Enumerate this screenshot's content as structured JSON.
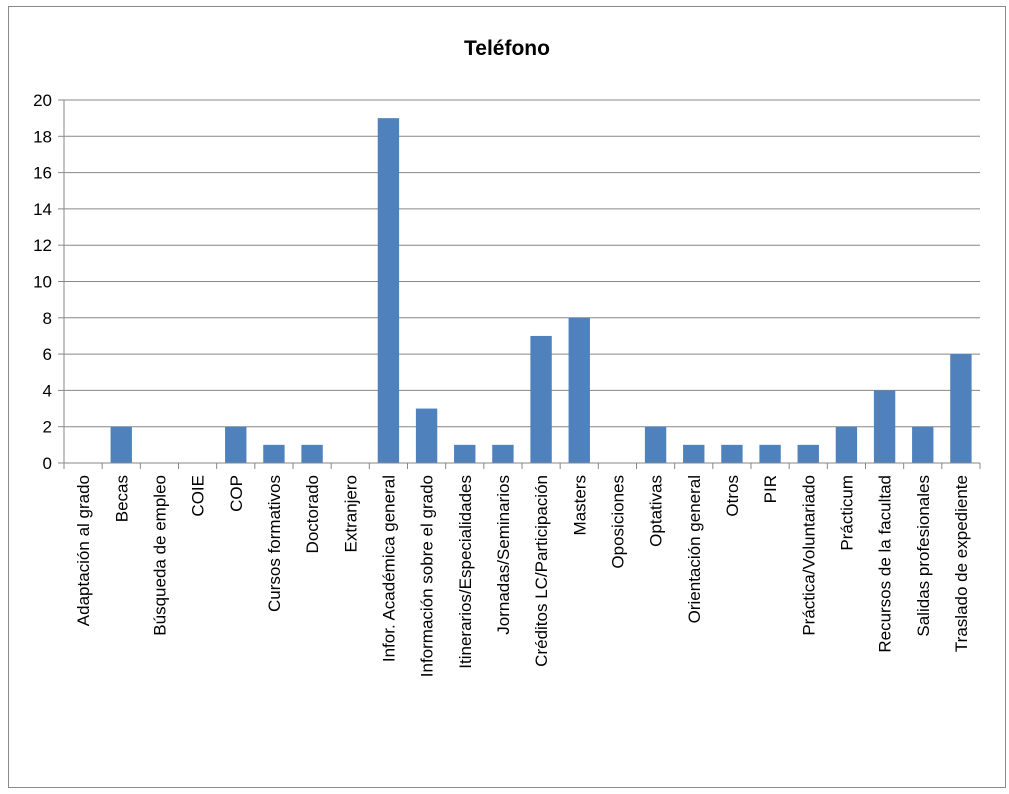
{
  "chart_data": {
    "type": "bar",
    "title": "Teléfono",
    "xlabel": "",
    "ylabel": "",
    "ylim": [
      0,
      20
    ],
    "yticks": [
      0,
      2,
      4,
      6,
      8,
      10,
      12,
      14,
      16,
      18,
      20
    ],
    "grid": true,
    "legend": "none",
    "bar_color": "#4f81bd",
    "grid_color": "#878787",
    "categories": [
      "Adaptación al grado",
      "Becas",
      "Búsqueda de empleo",
      "COIE",
      "COP",
      "Cursos formativos",
      "Doctorado",
      "Extranjero",
      "Infor. Académica general",
      "Información sobre el grado",
      "Itinerarios/Especialidades",
      "Jornadas/Seminarios",
      "Créditos LC/Participación",
      "Masters",
      "Oposiciones",
      "Optativas",
      "Orientación general",
      "Otros",
      "PIR",
      "Práctica/Voluntariado",
      "Prácticum",
      "Recursos de la facultad",
      "Salidas profesionales",
      "Traslado de expediente"
    ],
    "values": [
      0,
      2,
      0,
      0,
      2,
      1,
      1,
      0,
      19,
      3,
      1,
      1,
      7,
      8,
      0,
      2,
      1,
      1,
      1,
      1,
      2,
      4,
      2,
      6
    ]
  }
}
